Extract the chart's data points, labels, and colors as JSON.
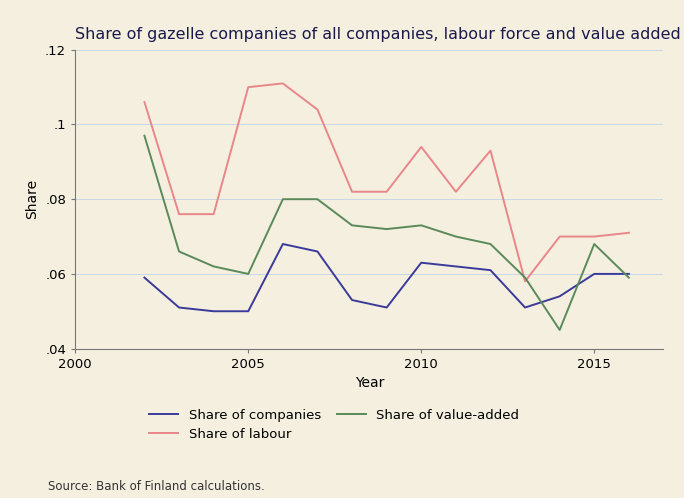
{
  "title": "Share of gazelle companies of all companies, labour force and value added",
  "xlabel": "Year",
  "ylabel": "Share",
  "source": "Source: Bank of Finland calculations.",
  "background_color": "#f5efe0",
  "ylim": [
    0.04,
    0.12
  ],
  "yticks": [
    0.04,
    0.06,
    0.08,
    0.1,
    0.12
  ],
  "ytick_labels": [
    ".04",
    ".06",
    ".08",
    ".1",
    ".12"
  ],
  "xlim": [
    2000,
    2017
  ],
  "xticks": [
    2000,
    2005,
    2010,
    2015
  ],
  "years_companies": [
    2002,
    2003,
    2004,
    2005,
    2006,
    2007,
    2008,
    2009,
    2010,
    2011,
    2012,
    2013,
    2014,
    2015,
    2016
  ],
  "share_companies": [
    0.059,
    0.051,
    0.05,
    0.05,
    0.068,
    0.066,
    0.053,
    0.051,
    0.063,
    0.062,
    0.061,
    0.051,
    0.054,
    0.06,
    0.06
  ],
  "years_labour": [
    2002,
    2003,
    2004,
    2005,
    2006,
    2007,
    2008,
    2009,
    2010,
    2011,
    2012,
    2013,
    2014,
    2015,
    2016
  ],
  "share_labour": [
    0.106,
    0.076,
    0.076,
    0.11,
    0.111,
    0.104,
    0.082,
    0.082,
    0.094,
    0.082,
    0.093,
    0.058,
    0.07,
    0.07,
    0.071
  ],
  "years_value_added": [
    2002,
    2003,
    2004,
    2005,
    2006,
    2007,
    2008,
    2009,
    2010,
    2011,
    2012,
    2013,
    2014,
    2015,
    2016
  ],
  "share_value_added": [
    0.097,
    0.066,
    0.062,
    0.06,
    0.08,
    0.08,
    0.073,
    0.072,
    0.073,
    0.07,
    0.068,
    0.059,
    0.045,
    0.068,
    0.059
  ],
  "color_companies": "#3a3a9a",
  "color_labour": "#e8868a",
  "color_value_added": "#5a8a5a",
  "legend_entries": [
    "Share of companies",
    "Share of labour",
    "Share of value-added"
  ],
  "title_fontsize": 11.5,
  "axis_label_fontsize": 10,
  "tick_fontsize": 9.5,
  "legend_fontsize": 9.5,
  "source_fontsize": 8.5,
  "linewidth": 1.4
}
